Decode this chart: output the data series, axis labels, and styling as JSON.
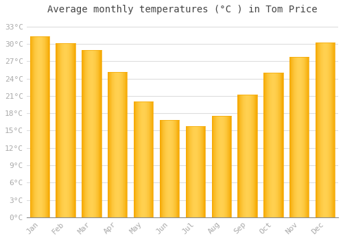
{
  "title": "Average monthly temperatures (°C ) in Tom Price",
  "months": [
    "Jan",
    "Feb",
    "Mar",
    "Apr",
    "May",
    "Jun",
    "Jul",
    "Aug",
    "Sep",
    "Oct",
    "Nov",
    "Dec"
  ],
  "values": [
    31.3,
    30.1,
    29.0,
    25.2,
    20.0,
    16.8,
    15.8,
    17.5,
    21.2,
    25.0,
    27.8,
    30.3
  ],
  "bar_color_center": "#FFD050",
  "bar_color_edge": "#F5A800",
  "background_color": "#FFFFFF",
  "plot_bg_color": "#FFFFFF",
  "grid_color": "#DDDDDD",
  "ytick_labels": [
    "0°C",
    "3°C",
    "6°C",
    "9°C",
    "12°C",
    "15°C",
    "18°C",
    "21°C",
    "24°C",
    "27°C",
    "30°C",
    "33°C"
  ],
  "ytick_values": [
    0,
    3,
    6,
    9,
    12,
    15,
    18,
    21,
    24,
    27,
    30,
    33
  ],
  "ylim": [
    0,
    34.5
  ],
  "title_fontsize": 10,
  "tick_fontsize": 8,
  "tick_label_color": "#AAAAAA",
  "title_color": "#444444",
  "bar_width": 0.75
}
